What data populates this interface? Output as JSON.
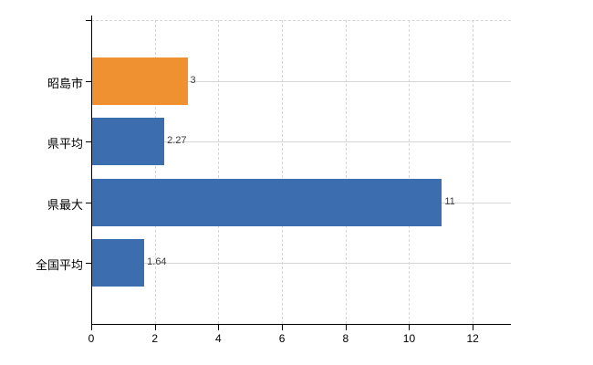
{
  "chart_data": {
    "type": "bar",
    "orientation": "horizontal",
    "title": "",
    "xlabel": "",
    "ylabel": "",
    "categories": [
      "昭島市",
      "県平均",
      "県最大",
      "全国平均"
    ],
    "values": [
      3,
      2.27,
      11,
      1.64
    ],
    "value_labels": [
      "3",
      "2.27",
      "11",
      "1.64"
    ],
    "bar_colors": [
      "#ef9130",
      "#3c6dae",
      "#3c6dae",
      "#3c6dae"
    ],
    "x_tick_labels": [
      "0",
      "2",
      "4",
      "6",
      "8",
      "10",
      "12"
    ],
    "x_tick_values": [
      0,
      2,
      4,
      6,
      8,
      10,
      12
    ],
    "xlim": [
      0,
      13.2
    ],
    "grid": "on",
    "legend": "none",
    "background_color": "#ffffff",
    "axis_color": "#000000",
    "grid_color": "#d6d6d6",
    "category_label_color": "#000000",
    "tick_label_color": "#000000",
    "value_label_color": "#3c3c3c"
  }
}
